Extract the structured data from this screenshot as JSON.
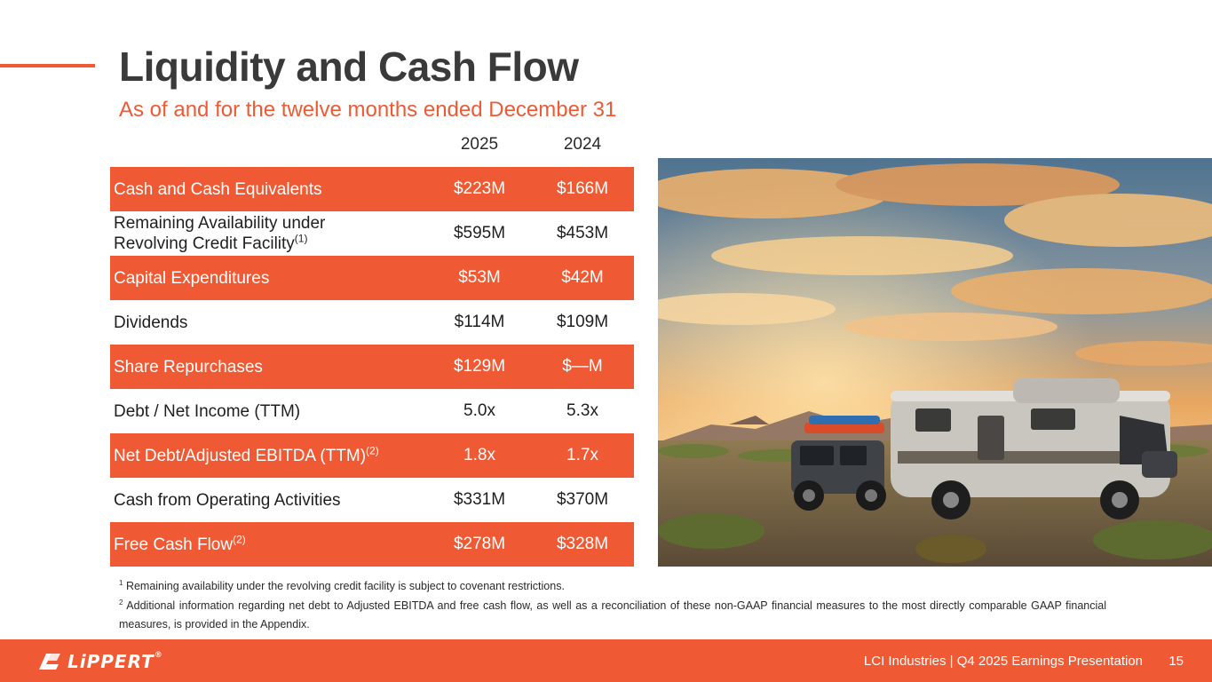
{
  "header": {
    "title": "Liquidity and Cash Flow",
    "subtitle": "As of and for the twelve months ended December 31"
  },
  "table": {
    "years": [
      "2025",
      "2024"
    ],
    "rows": [
      {
        "label": "Cash and Cash Equivalents",
        "sup": "",
        "v2025": "$223M",
        "v2024": "$166M"
      },
      {
        "label_line1": "Remaining Availability under",
        "label_line2": "Revolving Credit Facility",
        "sup": "(1)",
        "v2025": "$595M",
        "v2024": "$453M"
      },
      {
        "label": "Capital Expenditures",
        "sup": "",
        "v2025": "$53M",
        "v2024": "$42M"
      },
      {
        "label": "Dividends",
        "sup": "",
        "v2025": "$114M",
        "v2024": "$109M"
      },
      {
        "label": "Share Repurchases",
        "sup": "",
        "v2025": "$129M",
        "v2024": "$—M"
      },
      {
        "label": "Debt / Net Income (TTM)",
        "sup": "",
        "v2025": "5.0x",
        "v2024": "5.3x"
      },
      {
        "label": "Net Debt/Adjusted EBITDA (TTM)",
        "sup": "(2)",
        "v2025": "1.8x",
        "v2024": "1.7x"
      },
      {
        "label": "Cash from Operating Activities",
        "sup": "",
        "v2025": "$331M",
        "v2024": "$370M"
      },
      {
        "label": "Free Cash Flow",
        "sup": "(2)",
        "v2025": "$278M",
        "v2024": "$328M"
      }
    ]
  },
  "footnotes": [
    {
      "num": "1",
      "text": "Remaining availability under the revolving credit facility is subject to covenant restrictions."
    },
    {
      "num": "2",
      "text": "Additional information regarding net debt to Adjusted EBITDA and free cash flow, as well as a reconciliation of these non-GAAP financial measures to the most directly comparable GAAP financial measures, is provided in the Appendix."
    }
  ],
  "footer": {
    "logo_text": "LiPPERT",
    "logo_tm": "®",
    "presentation": "LCI Industries | Q4 2025 Earnings Presentation",
    "page_number": "15"
  },
  "colors": {
    "accent": "#ef5a34",
    "title": "#3a3a3a"
  },
  "image": {
    "icon": "rv-desert-sunset-photo"
  }
}
